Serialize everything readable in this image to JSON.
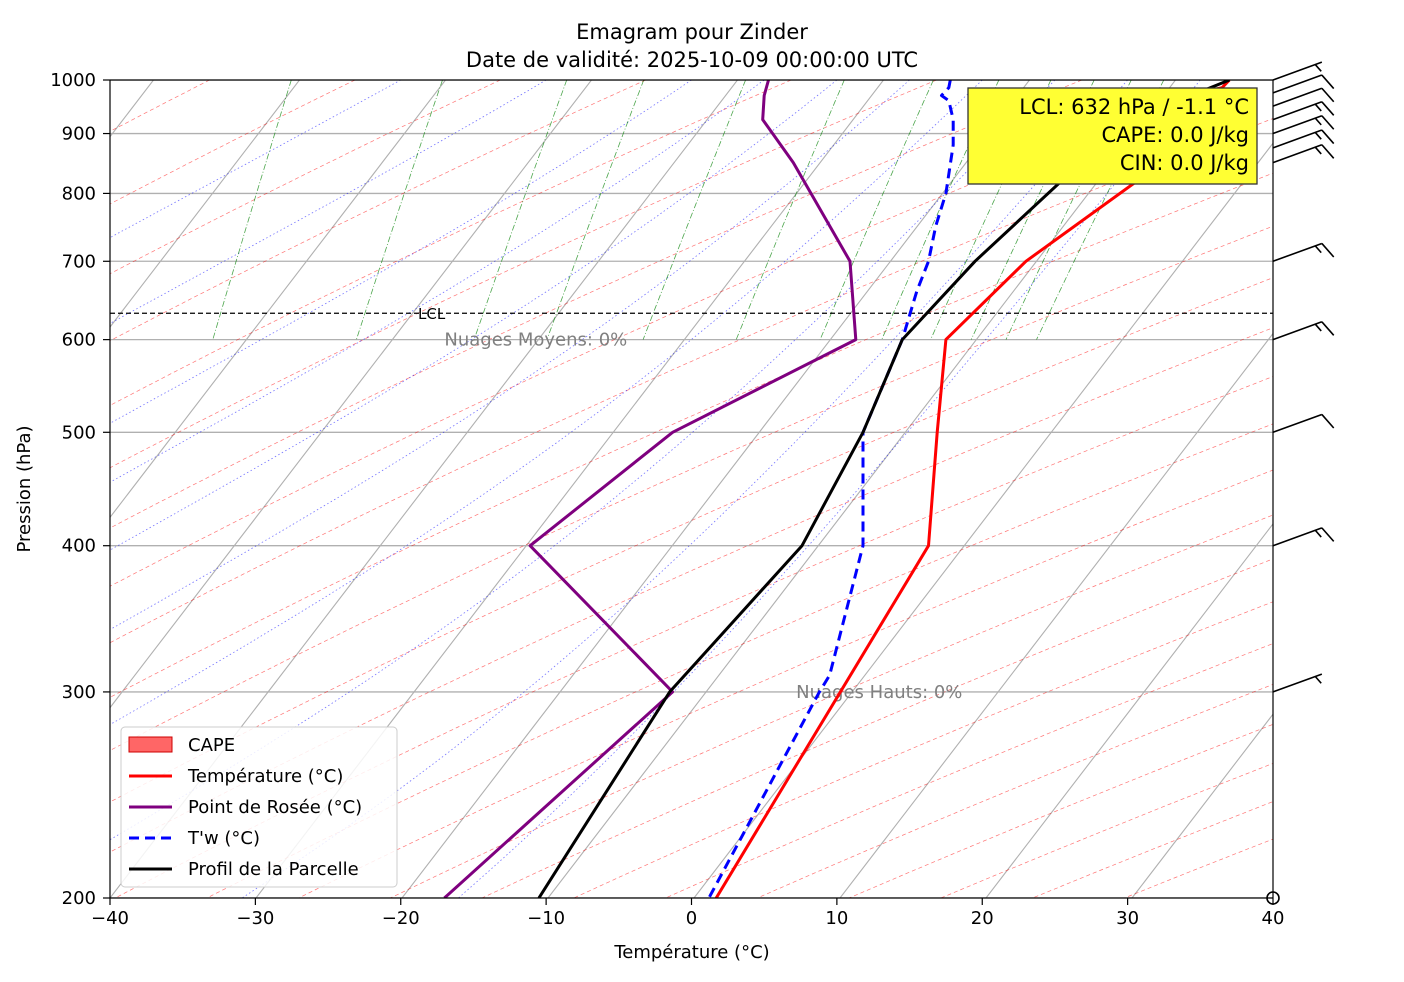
{
  "chart_data": {
    "type": "line",
    "title": "Emagram pour Zinder",
    "subtitle": "Date de validité: 2025-10-09 00:00:00 UTC",
    "xlabel": "Température (°C)",
    "ylabel": "Pression (hPa)",
    "xlim": [
      -40,
      40
    ],
    "ylim": [
      1000,
      200
    ],
    "y_scale": "log",
    "grid": true,
    "x_ticks": [
      -40,
      -30,
      -20,
      -10,
      0,
      10,
      20,
      30,
      40
    ],
    "y_ticks": [
      200,
      300,
      400,
      500,
      600,
      700,
      800,
      900,
      1000
    ],
    "info_box": {
      "lines": [
        "LCL: 632 hPa / -1.1 °C",
        "CAPE: 0.0 J/kg",
        "CIN: 0.0 J/kg"
      ],
      "background": "#ffff33",
      "placement": "top-right"
    },
    "lcl": {
      "pressure": 632,
      "label": "LCL"
    },
    "annotations": [
      {
        "text": "Nuages Hauts: 0%",
        "x": 7.2,
        "y": 300
      },
      {
        "text": "Nuages Moyens: 0%",
        "x": -17.0,
        "y": 600
      }
    ],
    "legend_placement": "lower-left",
    "legend": [
      {
        "label": "CAPE",
        "color": "#ff6666",
        "style": "patch"
      },
      {
        "label": "Température (°C)",
        "color": "#ff0000",
        "style": "solid"
      },
      {
        "label": "Point de Rosée (°C)",
        "color": "#7f007f",
        "style": "solid"
      },
      {
        "label": "T'w (°C)",
        "color": "#0000ff",
        "style": "dashed"
      },
      {
        "label": "Profil de la Parcelle",
        "color": "#000000",
        "style": "solid"
      }
    ],
    "series": [
      {
        "name": "Température (°C)",
        "color": "#ff0000",
        "style": "solid",
        "points": [
          [
            37.0,
            1000
          ],
          [
            36.5,
            985
          ],
          [
            34.0,
            970
          ],
          [
            36.5,
            925
          ],
          [
            23.0,
            700
          ],
          [
            17.5,
            600
          ],
          [
            16.9,
            500
          ],
          [
            16.3,
            400
          ],
          [
            1.7,
            200
          ]
        ]
      },
      {
        "name": "Point de Rosée (°C)",
        "color": "#7f007f",
        "style": "solid",
        "points": [
          [
            5.3,
            1000
          ],
          [
            5.0,
            970
          ],
          [
            4.9,
            925
          ],
          [
            7.0,
            850
          ],
          [
            10.9,
            700
          ],
          [
            11.3,
            600
          ],
          [
            -1.3,
            500
          ],
          [
            -11.1,
            400
          ],
          [
            -1.3,
            300
          ],
          [
            -17.0,
            200
          ]
        ]
      },
      {
        "name": "T'w (°C)",
        "color": "#0000ff",
        "style": "dashed",
        "points": [
          [
            17.8,
            1000
          ],
          [
            17.7,
            985
          ],
          [
            17.2,
            970
          ],
          [
            17.7,
            960
          ],
          [
            18.0,
            925
          ],
          [
            18.0,
            880
          ],
          [
            17.5,
            800
          ],
          [
            16.8,
            750
          ],
          [
            16.3,
            700
          ],
          [
            15.5,
            660
          ],
          [
            14.5,
            600
          ],
          [
            11.8,
            500
          ],
          [
            11.8,
            400
          ],
          [
            9.5,
            310
          ],
          [
            8.8,
            300
          ],
          [
            1.2,
            200
          ]
        ]
      },
      {
        "name": "Profil de la Parcelle",
        "color": "#000000",
        "style": "solid",
        "points": [
          [
            37.0,
            1000
          ],
          [
            33.5,
            960
          ],
          [
            30.0,
            925
          ],
          [
            19.5,
            700
          ],
          [
            14.5,
            600
          ],
          [
            11.8,
            500
          ],
          [
            7.6,
            400
          ],
          [
            -1.5,
            300
          ],
          [
            -10.5,
            200
          ]
        ]
      }
    ],
    "wind_barbs": [
      {
        "pressure": 300,
        "speed_kt": 5
      },
      {
        "pressure": 400,
        "speed_kt": 15
      },
      {
        "pressure": 500,
        "speed_kt": 10
      },
      {
        "pressure": 600,
        "speed_kt": 15
      },
      {
        "pressure": 700,
        "speed_kt": 15
      },
      {
        "pressure": 850,
        "speed_kt": 15
      },
      {
        "pressure": 875,
        "speed_kt": 15
      },
      {
        "pressure": 900,
        "speed_kt": 15
      },
      {
        "pressure": 925,
        "speed_kt": 15
      },
      {
        "pressure": 950,
        "speed_kt": 10
      },
      {
        "pressure": 975,
        "speed_kt": 10
      },
      {
        "pressure": 1000,
        "speed_kt": 5
      }
    ],
    "calm_marker_pressure": 200,
    "background_lines": {
      "skew_isotherm_color": "#b0b0b0",
      "dry_adiabat_color": "#ff0000",
      "moist_adiabat_color": "#0000ff",
      "mixing_ratio_color": "#008000"
    }
  }
}
